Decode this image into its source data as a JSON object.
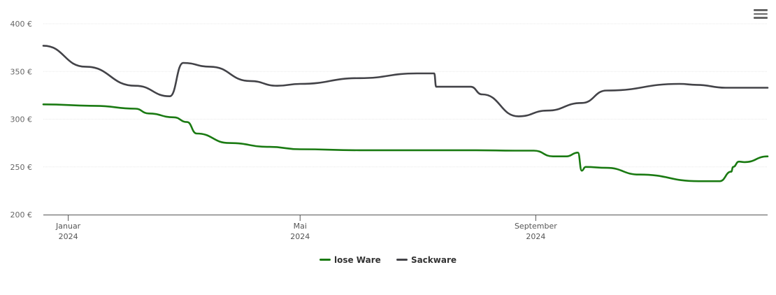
{
  "chart_data": {
    "type": "line",
    "y_ticks": [
      "200 €",
      "250 €",
      "300 €",
      "350 €",
      "400 €"
    ],
    "ylim": [
      200,
      400
    ],
    "xlim": [
      "2023-12-19",
      "2024-12-31"
    ],
    "x_ticks": [
      {
        "month": "Januar",
        "year": "2024",
        "date": "2024-01-01"
      },
      {
        "month": "Mai",
        "year": "2024",
        "date": "2024-05-01"
      },
      {
        "month": "September",
        "year": "2024",
        "date": "2024-09-01"
      }
    ],
    "grid": true,
    "legend_position": "bottom-center",
    "series": [
      {
        "name": "lose Ware",
        "color": "#1a7a12",
        "points": [
          [
            "2023-12-19",
            315.5
          ],
          [
            "2024-01-15",
            314
          ],
          [
            "2024-02-05",
            311
          ],
          [
            "2024-02-12",
            306
          ],
          [
            "2024-02-25",
            302
          ],
          [
            "2024-03-03",
            297
          ],
          [
            "2024-03-08",
            285
          ],
          [
            "2024-03-25",
            275
          ],
          [
            "2024-04-15",
            271
          ],
          [
            "2024-05-01",
            268.5
          ],
          [
            "2024-06-01",
            267.5
          ],
          [
            "2024-08-01",
            267.5
          ],
          [
            "2024-08-21",
            267
          ],
          [
            "2024-08-31",
            267
          ],
          [
            "2024-09-10",
            261
          ],
          [
            "2024-09-17",
            261
          ],
          [
            "2024-09-23",
            265
          ],
          [
            "2024-09-25",
            246
          ],
          [
            "2024-09-27",
            250
          ],
          [
            "2024-10-08",
            249
          ],
          [
            "2024-10-25",
            242
          ],
          [
            "2024-11-25",
            235
          ],
          [
            "2024-12-06",
            235
          ],
          [
            "2024-12-12",
            245
          ],
          [
            "2024-12-13",
            250
          ],
          [
            "2024-12-16",
            255.5
          ],
          [
            "2024-12-19",
            255
          ],
          [
            "2024-12-31",
            261
          ]
        ]
      },
      {
        "name": "Sackware",
        "color": "#434348",
        "points": [
          [
            "2023-12-19",
            377
          ],
          [
            "2024-01-10",
            355
          ],
          [
            "2024-02-05",
            335
          ],
          [
            "2024-02-23",
            324
          ],
          [
            "2024-03-01",
            359
          ],
          [
            "2024-03-15",
            355
          ],
          [
            "2024-04-05",
            340
          ],
          [
            "2024-04-19",
            335
          ],
          [
            "2024-05-01",
            337
          ],
          [
            "2024-06-01",
            343
          ],
          [
            "2024-07-01",
            348
          ],
          [
            "2024-07-10",
            348
          ],
          [
            "2024-07-11",
            334
          ],
          [
            "2024-07-29",
            334
          ],
          [
            "2024-08-04",
            326
          ],
          [
            "2024-08-23",
            303
          ],
          [
            "2024-09-07",
            309
          ],
          [
            "2024-09-25",
            317
          ],
          [
            "2024-10-08",
            330
          ],
          [
            "2024-11-15",
            337
          ],
          [
            "2024-11-24",
            336
          ],
          [
            "2024-12-09",
            333
          ],
          [
            "2024-12-31",
            333
          ]
        ]
      }
    ]
  },
  "legend": [
    {
      "label": "lose Ware",
      "color": "#1a7a12"
    },
    {
      "label": "Sackware",
      "color": "#434348"
    }
  ],
  "menu_icon": "hamburger-menu-icon"
}
